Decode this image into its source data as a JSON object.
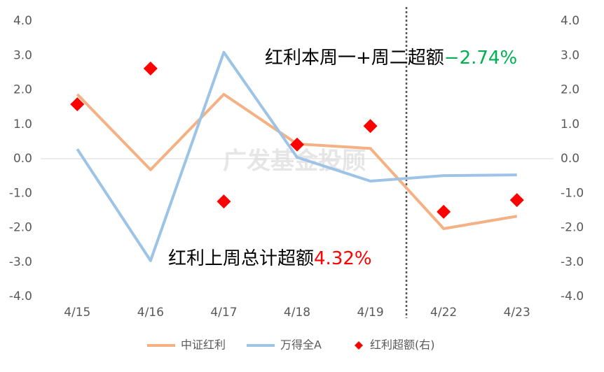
{
  "chart_data": {
    "type": "line",
    "categories": [
      "4/15",
      "4/16",
      "4/17",
      "4/18",
      "4/19",
      "4/22",
      "4/23"
    ],
    "series": [
      {
        "name": "中证红利",
        "color": "#f4b183",
        "values": [
          1.87,
          -0.32,
          1.87,
          0.43,
          0.3,
          -2.03,
          -1.67
        ]
      },
      {
        "name": "万得全A",
        "color": "#9dc3e6",
        "values": [
          0.28,
          -2.96,
          3.09,
          0.04,
          -0.65,
          -0.49,
          -0.47
        ]
      },
      {
        "name": "红利超额(右)",
        "color": "#ff0000",
        "type": "scatter",
        "marker": "diamond",
        "axis": "y2",
        "values": [
          1.58,
          2.62,
          -1.24,
          0.41,
          0.95,
          -1.54,
          -1.2
        ]
      }
    ],
    "ylim": [
      -4,
      4
    ],
    "yticks": [
      {
        "value": -4,
        "label": "-4.0"
      },
      {
        "value": -3,
        "label": "-3.0"
      },
      {
        "value": -2,
        "label": "-2.0"
      },
      {
        "value": -1,
        "label": "-1.0"
      },
      {
        "value": 0,
        "label": "0.0"
      },
      {
        "value": 1,
        "label": "1.0"
      },
      {
        "value": 2,
        "label": "2.0"
      },
      {
        "value": 3,
        "label": "3.0"
      },
      {
        "value": 4,
        "label": "4.0"
      }
    ],
    "y2lim": [
      -4,
      4
    ],
    "y2ticks": [
      {
        "value": -4,
        "label": "-4.0"
      },
      {
        "value": -3,
        "label": "-3.0"
      },
      {
        "value": -2,
        "label": "-2.0"
      },
      {
        "value": -1,
        "label": "-1.0"
      },
      {
        "value": 0,
        "label": "0.0"
      },
      {
        "value": 1,
        "label": "1.0"
      },
      {
        "value": 2,
        "label": "2.0"
      },
      {
        "value": 3,
        "label": "3.0"
      },
      {
        "value": 4,
        "label": "4.0"
      }
    ],
    "annotations": [
      {
        "parts": [
          {
            "text": "红利本周一+周二超额",
            "color": "#000000"
          },
          {
            "text": "−2.74%",
            "color": "#00b050"
          }
        ]
      },
      {
        "parts": [
          {
            "text": "红利上周总计超额",
            "color": "#000000"
          },
          {
            "text": "4.32%",
            "color": "#ff0000"
          }
        ]
      }
    ],
    "watermark": "广发基金投顾",
    "legend": "bottom"
  }
}
